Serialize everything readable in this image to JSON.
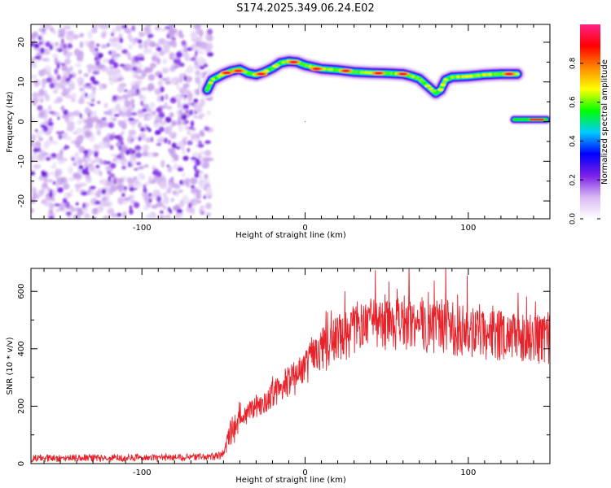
{
  "title": "S174.2025.349.06.24.E02",
  "chart_data": [
    {
      "type": "heatmap",
      "name": "spectrogram",
      "xlabel": "Height of straight line (km)",
      "ylabel": "Frequency (Hz)",
      "xlim": [
        -168,
        150
      ],
      "ylim": [
        -24.5,
        24.5
      ],
      "xticks": [
        -100,
        0,
        100
      ],
      "yticks": [
        -20,
        -10,
        0,
        10,
        20
      ],
      "colorbar": {
        "label": "Normalized spectral amplitude",
        "range": [
          0,
          1
        ],
        "ticks": [
          0.0,
          0.2,
          0.4,
          0.6,
          0.8
        ],
        "tick_labels": [
          "0.0",
          "0.2",
          "0.4",
          "0.6",
          "0.8"
        ],
        "colormap_stops": [
          "#ffffff",
          "#d8b8f2",
          "#7a1fe8",
          "#0000ff",
          "#00ccff",
          "#00ff00",
          "#ffff00",
          "#ff8800",
          "#ff0000",
          "#ff2288"
        ]
      },
      "noise_region": {
        "x_range": [
          -168,
          -58
        ],
        "freq_range": [
          -24.5,
          24.5
        ],
        "amplitude_range": [
          0.02,
          0.12
        ]
      },
      "ridge": [
        {
          "x": -60,
          "f": 8.0
        },
        {
          "x": -57,
          "f": 10.5
        },
        {
          "x": -50,
          "f": 12.0
        },
        {
          "x": -45,
          "f": 12.8
        },
        {
          "x": -40,
          "f": 13.2
        },
        {
          "x": -35,
          "f": 12.2
        },
        {
          "x": -30,
          "f": 11.8
        },
        {
          "x": -25,
          "f": 12.5
        },
        {
          "x": -20,
          "f": 13.5
        },
        {
          "x": -15,
          "f": 14.8
        },
        {
          "x": -10,
          "f": 15.2
        },
        {
          "x": -5,
          "f": 15.0
        },
        {
          "x": 0,
          "f": 14.2
        },
        {
          "x": 10,
          "f": 13.3
        },
        {
          "x": 20,
          "f": 13.0
        },
        {
          "x": 30,
          "f": 12.5
        },
        {
          "x": 40,
          "f": 12.3
        },
        {
          "x": 50,
          "f": 12.2
        },
        {
          "x": 60,
          "f": 12.0
        },
        {
          "x": 65,
          "f": 11.5
        },
        {
          "x": 70,
          "f": 10.8
        },
        {
          "x": 75,
          "f": 9.0
        },
        {
          "x": 80,
          "f": 7.2
        },
        {
          "x": 83,
          "f": 8.0
        },
        {
          "x": 86,
          "f": 10.5
        },
        {
          "x": 90,
          "f": 11.2
        },
        {
          "x": 100,
          "f": 11.4
        },
        {
          "x": 110,
          "f": 11.8
        },
        {
          "x": 120,
          "f": 12.0
        },
        {
          "x": 130,
          "f": 12.0
        }
      ],
      "ridge_peaks": [
        {
          "x": -48,
          "f": 12.3
        },
        {
          "x": -41,
          "f": 12.8
        },
        {
          "x": -27,
          "f": 12.0
        },
        {
          "x": -7,
          "f": 15.0
        },
        {
          "x": 7,
          "f": 13.3
        },
        {
          "x": 25,
          "f": 12.8
        },
        {
          "x": 45,
          "f": 12.2
        },
        {
          "x": 60,
          "f": 12.0
        },
        {
          "x": 125,
          "f": 12.0
        }
      ],
      "segment2": {
        "x_range": [
          128,
          148
        ],
        "f": 0.5,
        "peak_x_range": [
          138,
          146
        ]
      },
      "marker": {
        "x": 0,
        "f": 0
      }
    },
    {
      "type": "line",
      "name": "snr",
      "xlabel": "Height of straight line (km)",
      "ylabel": "SNR (10 * v/v)",
      "xlim": [
        -168,
        150
      ],
      "ylim": [
        0,
        680
      ],
      "xticks": [
        -100,
        0,
        100
      ],
      "yticks": [
        0,
        200,
        400,
        600
      ],
      "color": "#e8222a",
      "series": [
        {
          "name": "SNR envelope",
          "x": [
            -168,
            -60,
            -50,
            -45,
            -40,
            -30,
            -20,
            -10,
            0,
            10,
            20,
            30,
            40,
            50,
            60,
            70,
            80,
            90,
            100,
            110,
            120,
            130,
            140,
            150
          ],
          "y": [
            18,
            22,
            30,
            120,
            150,
            200,
            240,
            280,
            330,
            390,
            430,
            470,
            490,
            495,
            490,
            485,
            480,
            470,
            460,
            450,
            445,
            440,
            435,
            430
          ]
        }
      ]
    }
  ]
}
